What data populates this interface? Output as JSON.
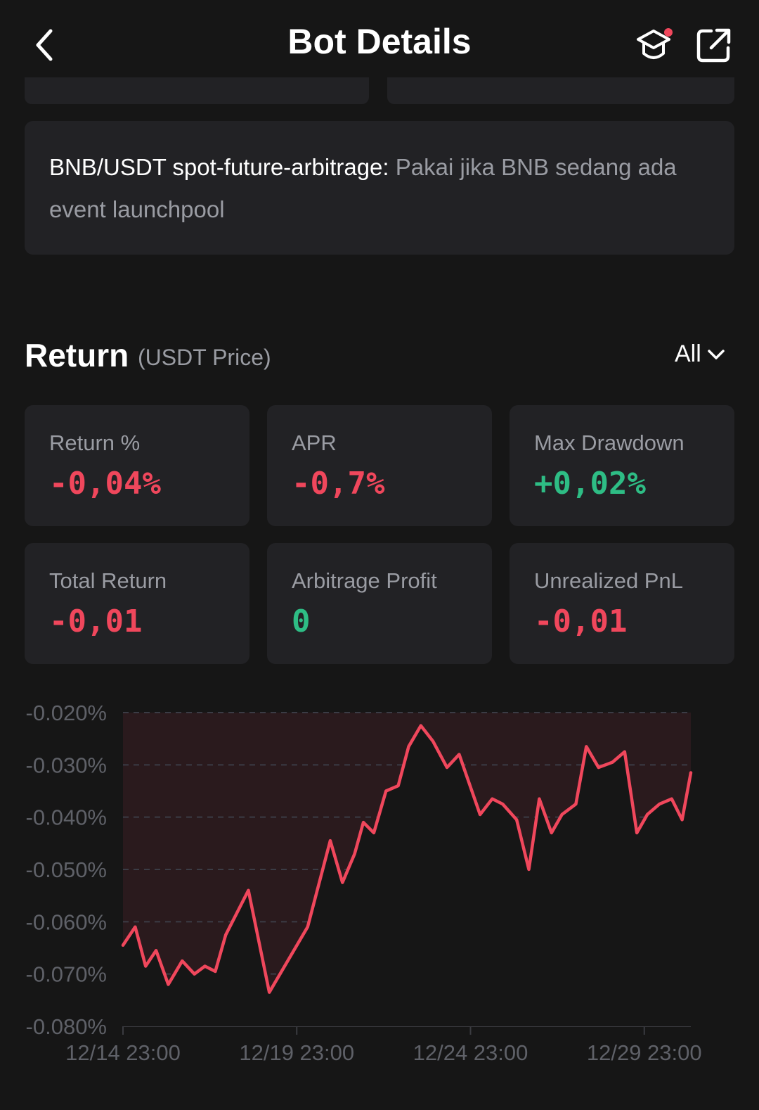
{
  "header": {
    "title": "Bot Details"
  },
  "description": {
    "bold": "BNB/USDT spot-future-arbitrage:",
    "text": " Pakai jika BNB sedang ada event launchpool"
  },
  "return_section": {
    "title": "Return",
    "subtitle": "(USDT Price)",
    "range": "All"
  },
  "stats": [
    {
      "label": "Return %",
      "value": "-0,04%",
      "tone": "neg"
    },
    {
      "label": "APR",
      "value": "-0,7%",
      "tone": "neg"
    },
    {
      "label": "Max Drawdown",
      "value": "+0,02%",
      "tone": "pos"
    },
    {
      "label": "Total Return",
      "value": "-0,01",
      "tone": "neg"
    },
    {
      "label": "Arbitrage Profit",
      "value": "0",
      "tone": "pos"
    },
    {
      "label": "Unrealized PnL",
      "value": "-0,01",
      "tone": "neg"
    }
  ],
  "colors": {
    "negative": "#f0475c",
    "positive": "#2ebd85",
    "card": "#222225",
    "background": "#161616"
  },
  "chart_data": {
    "type": "line",
    "ylim": [
      -0.08,
      -0.02
    ],
    "yticks": [
      "-0.020%",
      "-0.030%",
      "-0.040%",
      "-0.050%",
      "-0.060%",
      "-0.070%",
      "-0.080%"
    ],
    "xticks": [
      "12/14 23:00",
      "12/19 23:00",
      "12/24 23:00",
      "12/29 23:00"
    ],
    "xlim": [
      0,
      16.3
    ],
    "grid": true,
    "line_color": "#f0475c",
    "points": [
      [
        0.0,
        -0.0645
      ],
      [
        0.35,
        -0.061
      ],
      [
        0.65,
        -0.0685
      ],
      [
        0.95,
        -0.0655
      ],
      [
        1.3,
        -0.072
      ],
      [
        1.7,
        -0.0675
      ],
      [
        2.05,
        -0.07
      ],
      [
        2.35,
        -0.0685
      ],
      [
        2.65,
        -0.0695
      ],
      [
        2.95,
        -0.0625
      ],
      [
        3.6,
        -0.054
      ],
      [
        4.2,
        -0.0735
      ],
      [
        5.3,
        -0.061
      ],
      [
        5.95,
        -0.0445
      ],
      [
        6.3,
        -0.0525
      ],
      [
        6.65,
        -0.047
      ],
      [
        6.9,
        -0.041
      ],
      [
        7.2,
        -0.043
      ],
      [
        7.55,
        -0.035
      ],
      [
        7.9,
        -0.034
      ],
      [
        8.2,
        -0.0265
      ],
      [
        8.55,
        -0.0225
      ],
      [
        8.9,
        -0.0255
      ],
      [
        9.3,
        -0.0305
      ],
      [
        9.65,
        -0.028
      ],
      [
        10.25,
        -0.0395
      ],
      [
        10.6,
        -0.0365
      ],
      [
        10.9,
        -0.0375
      ],
      [
        11.3,
        -0.0405
      ],
      [
        11.65,
        -0.05
      ],
      [
        11.95,
        -0.0365
      ],
      [
        12.3,
        -0.043
      ],
      [
        12.6,
        -0.0395
      ],
      [
        13.0,
        -0.0375
      ],
      [
        13.3,
        -0.0265
      ],
      [
        13.65,
        -0.0305
      ],
      [
        14.05,
        -0.0295
      ],
      [
        14.4,
        -0.0275
      ],
      [
        14.75,
        -0.043
      ],
      [
        15.05,
        -0.0395
      ],
      [
        15.4,
        -0.0375
      ],
      [
        15.75,
        -0.0365
      ],
      [
        16.05,
        -0.0405
      ],
      [
        16.3,
        -0.0315
      ]
    ]
  }
}
